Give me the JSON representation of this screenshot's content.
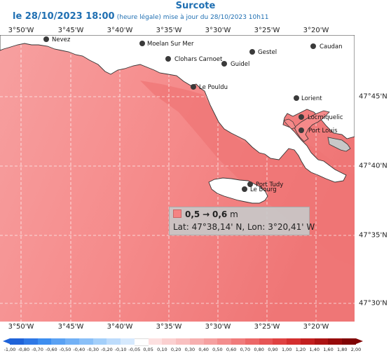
{
  "title": "Surcote",
  "subtitle": {
    "datetime": "le 28/10/2023 18:00",
    "note": "(heure légale) mise à jour du 28/10/2023 10h11"
  },
  "longitude_labels": [
    "3°50'W",
    "3°45'W",
    "3°40'W",
    "3°35'W",
    "3°30'W",
    "3°25'W",
    "3°20'W"
  ],
  "latitude_labels": [
    "47°45'N",
    "47°40'N",
    "47°35'N",
    "47°30'N"
  ],
  "cities": [
    {
      "name": "Nevez"
    },
    {
      "name": "Moelan Sur Mer"
    },
    {
      "name": "Gestel"
    },
    {
      "name": "Caudan"
    },
    {
      "name": "Clohars Carnoet"
    },
    {
      "name": "Guidel"
    },
    {
      "name": "Le Pouldu"
    },
    {
      "name": "Lorient"
    },
    {
      "name": "Locmiquelic"
    },
    {
      "name": "Port Louis"
    },
    {
      "name": "Port Tudy"
    },
    {
      "name": "Le Bourg"
    }
  ],
  "tooltip": {
    "range_from": "0,5",
    "range_to": "0,6",
    "unit": "m",
    "arrow": "→",
    "coords": "Lat: 47°38,14' N, Lon: 3°20,41' W",
    "swatch_color": "#f48383"
  },
  "colors": {
    "sea_main": "#f58a8a",
    "sea_darker": "#ef7676",
    "sea_lighter": "#f7a0a0",
    "land": "#ffffff",
    "text_blue": "#1f6fb2"
  },
  "colorbar": {
    "labels": [
      "-1,00",
      "-0,80",
      "-0,70",
      "-0,60",
      "-0,50",
      "-0,40",
      "-0,30",
      "-0,20",
      "-0,10",
      "-0,05",
      "0,05",
      "0,10",
      "0,20",
      "0,30",
      "0,40",
      "0,50",
      "0,60",
      "0,70",
      "0,80",
      "0,90",
      "1,00",
      "1,20",
      "1,40",
      "1,60",
      "1,80",
      "2,00"
    ],
    "colors": [
      "#1f63d9",
      "#2e78e6",
      "#3d8ef0",
      "#5aa1f3",
      "#72b1f6",
      "#8ac0f8",
      "#a3cffa",
      "#bddcfc",
      "#d6e9fd",
      "#ffffff",
      "#fde0e0",
      "#fbd0d0",
      "#f9c0c0",
      "#f7b0b0",
      "#f5a0a0",
      "#f38d8d",
      "#f07b7b",
      "#ec6868",
      "#e65555",
      "#df4242",
      "#d42f2f",
      "#c21f1f",
      "#ad1414",
      "#970b0b",
      "#800404"
    ]
  }
}
